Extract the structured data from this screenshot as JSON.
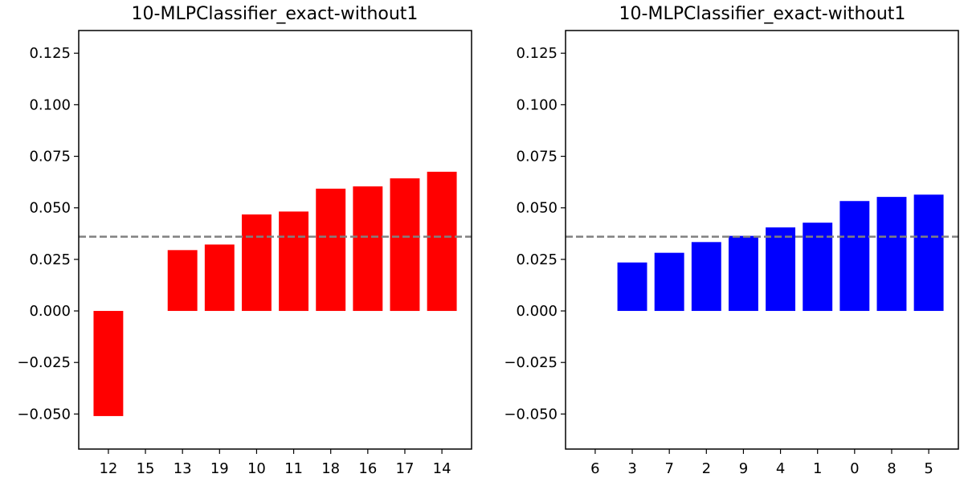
{
  "chart_data": [
    {
      "type": "bar",
      "title": "10-MLPClassifier_exact-without1",
      "xlabel": "",
      "ylabel": "",
      "categories": [
        "12",
        "15",
        "13",
        "19",
        "10",
        "11",
        "18",
        "16",
        "17",
        "14"
      ],
      "values": [
        -0.051,
        0.0,
        0.0295,
        0.0322,
        0.0468,
        0.0482,
        0.0593,
        0.0604,
        0.0643,
        0.0675
      ],
      "bar_color": "#ff0000",
      "reference_line": {
        "y": 0.036,
        "style": "dashed",
        "color": "#808080"
      },
      "ylim": [
        -0.067,
        0.136
      ],
      "yticks": [
        -0.05,
        -0.025,
        0.0,
        0.025,
        0.05,
        0.075,
        0.1,
        0.125
      ],
      "ytick_labels": [
        "−0.050",
        "−0.025",
        "0.000",
        "0.025",
        "0.050",
        "0.075",
        "0.100",
        "0.125"
      ],
      "grid": false
    },
    {
      "type": "bar",
      "title": "10-MLPClassifier_exact-without1",
      "xlabel": "",
      "ylabel": "",
      "categories": [
        "6",
        "3",
        "7",
        "2",
        "9",
        "4",
        "1",
        "0",
        "8",
        "5"
      ],
      "values": [
        0.0,
        0.0235,
        0.0282,
        0.0334,
        0.0364,
        0.0405,
        0.0428,
        0.0533,
        0.0553,
        0.0564
      ],
      "bar_color": "#0000ff",
      "reference_line": {
        "y": 0.036,
        "style": "dashed",
        "color": "#808080"
      },
      "ylim": [
        -0.067,
        0.136
      ],
      "yticks": [
        -0.05,
        -0.025,
        0.0,
        0.025,
        0.05,
        0.075,
        0.1,
        0.125
      ],
      "ytick_labels": [
        "−0.050",
        "−0.025",
        "0.000",
        "0.025",
        "0.050",
        "0.075",
        "0.100",
        "0.125"
      ],
      "grid": false
    }
  ]
}
